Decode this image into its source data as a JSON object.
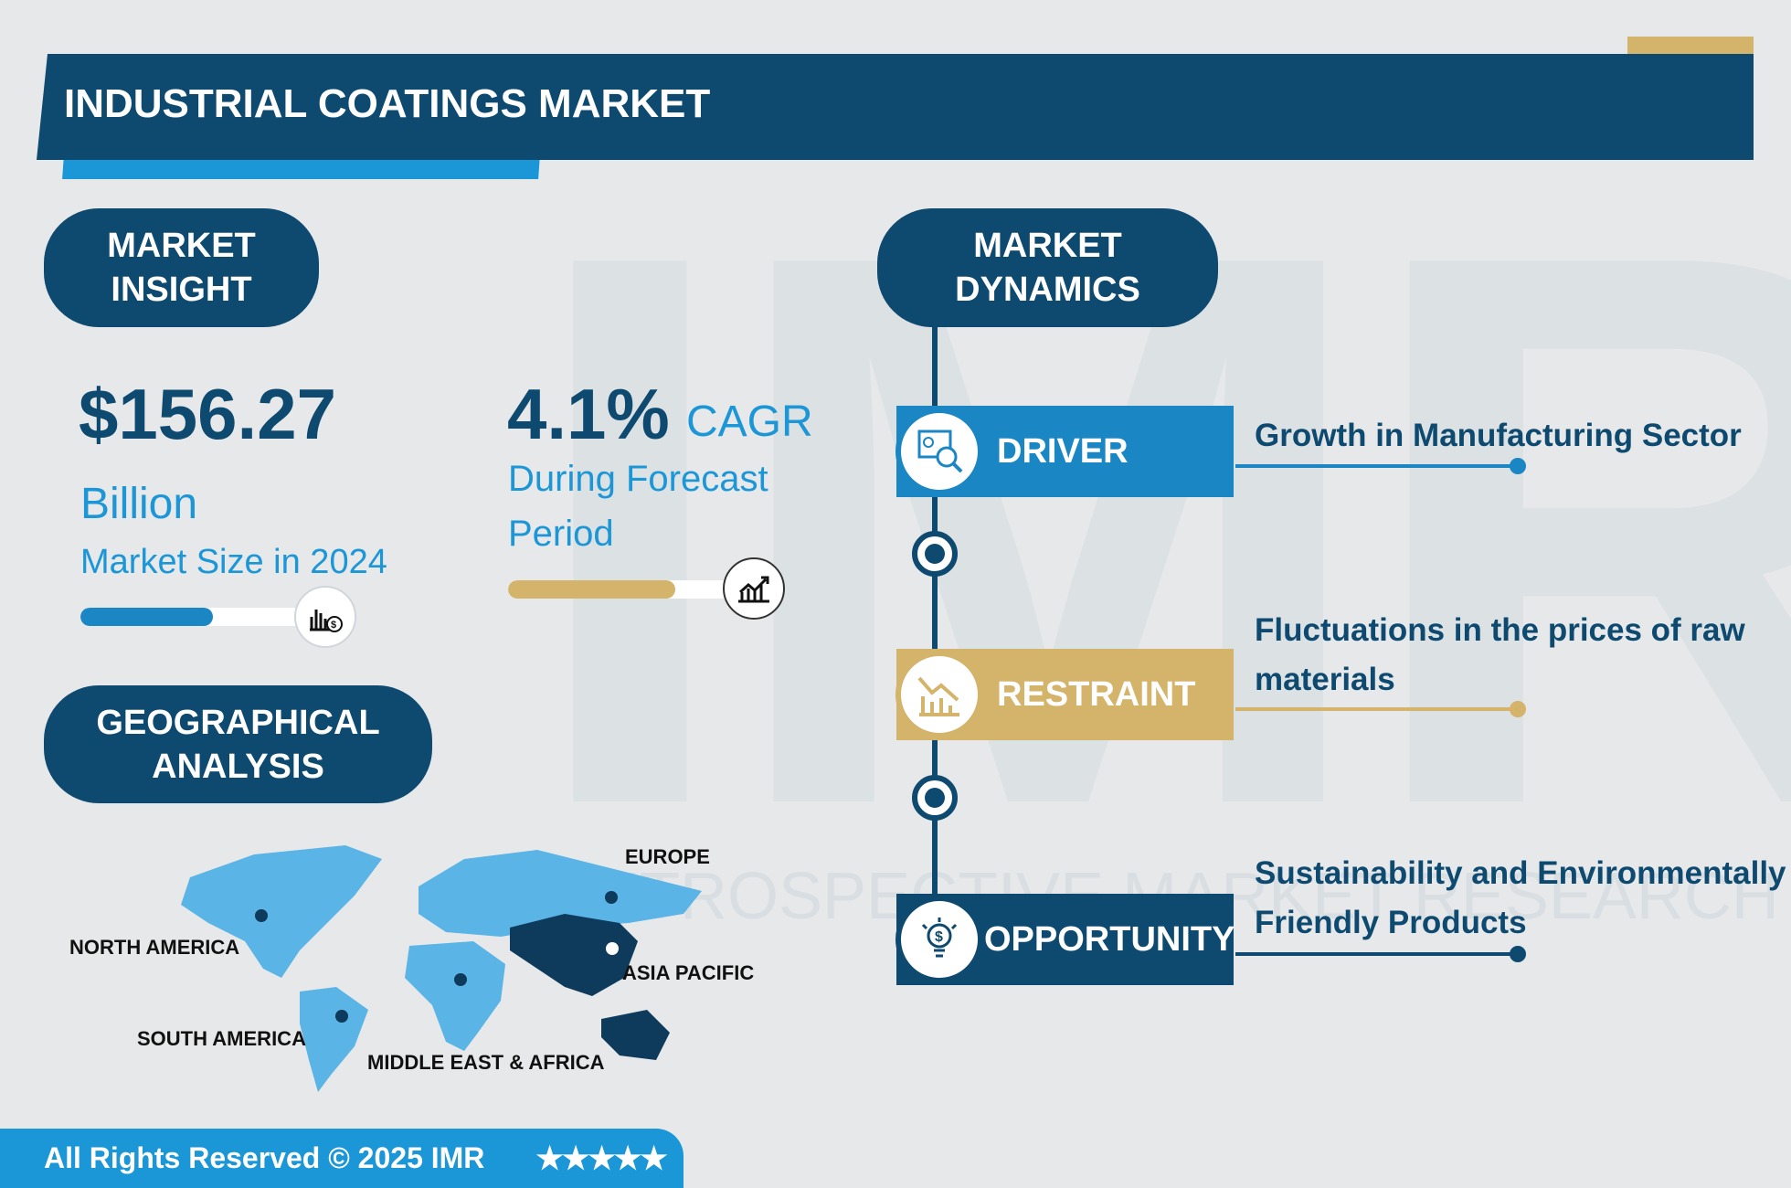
{
  "header": {
    "title": "INDUSTRIAL COATINGS MARKET"
  },
  "watermark": {
    "logo": "IMR",
    "tagline": "RETROSPECTIVE MARKET RESEARCH"
  },
  "insight": {
    "heading_line1": "MARKET",
    "heading_line2": "INSIGHT",
    "market_size": "$156.27",
    "unit": "Billion",
    "size_label": "Market Size in 2024",
    "size_progress": 0.54,
    "cagr": "4.1%",
    "cagr_label": "CAGR",
    "forecast_line1": "During Forecast",
    "forecast_line2": "Period",
    "cagr_progress": 0.75
  },
  "geo": {
    "heading_line1": "GEOGRAPHICAL",
    "heading_line2": "ANALYSIS",
    "regions": [
      "NORTH AMERICA",
      "SOUTH AMERICA",
      "MIDDLE EAST & AFRICA",
      "EUROPE",
      "ASIA PACIFIC"
    ]
  },
  "dynamics": {
    "heading_line1": "MARKET",
    "heading_line2": "DYNAMICS",
    "items": [
      {
        "label": "DRIVER",
        "text_line1": "Growth in Manufacturing Sector",
        "text_line2": "",
        "color": "#1b86c4",
        "icon": "analytics-icon"
      },
      {
        "label": "RESTRAINT",
        "text_line1": "Fluctuations in the prices of raw",
        "text_line2": "materials",
        "color": "#d4b46b",
        "icon": "declining-chart-icon"
      },
      {
        "label": "OPPORTUNITY",
        "text_line1": "Sustainability and Environmentally",
        "text_line2": "Friendly Products",
        "color": "#0e4a70",
        "icon": "dollar-bulb-icon"
      }
    ]
  },
  "footer": {
    "text": "All Rights Reserved © 2025 IMR",
    "stars": "★★★★★",
    "rating": 5
  },
  "colors": {
    "navy": "#0e4a70",
    "blue": "#1b86c4",
    "light_blue": "#25a3dd",
    "gold": "#d4b46b",
    "bg": "#e6e8ea"
  }
}
